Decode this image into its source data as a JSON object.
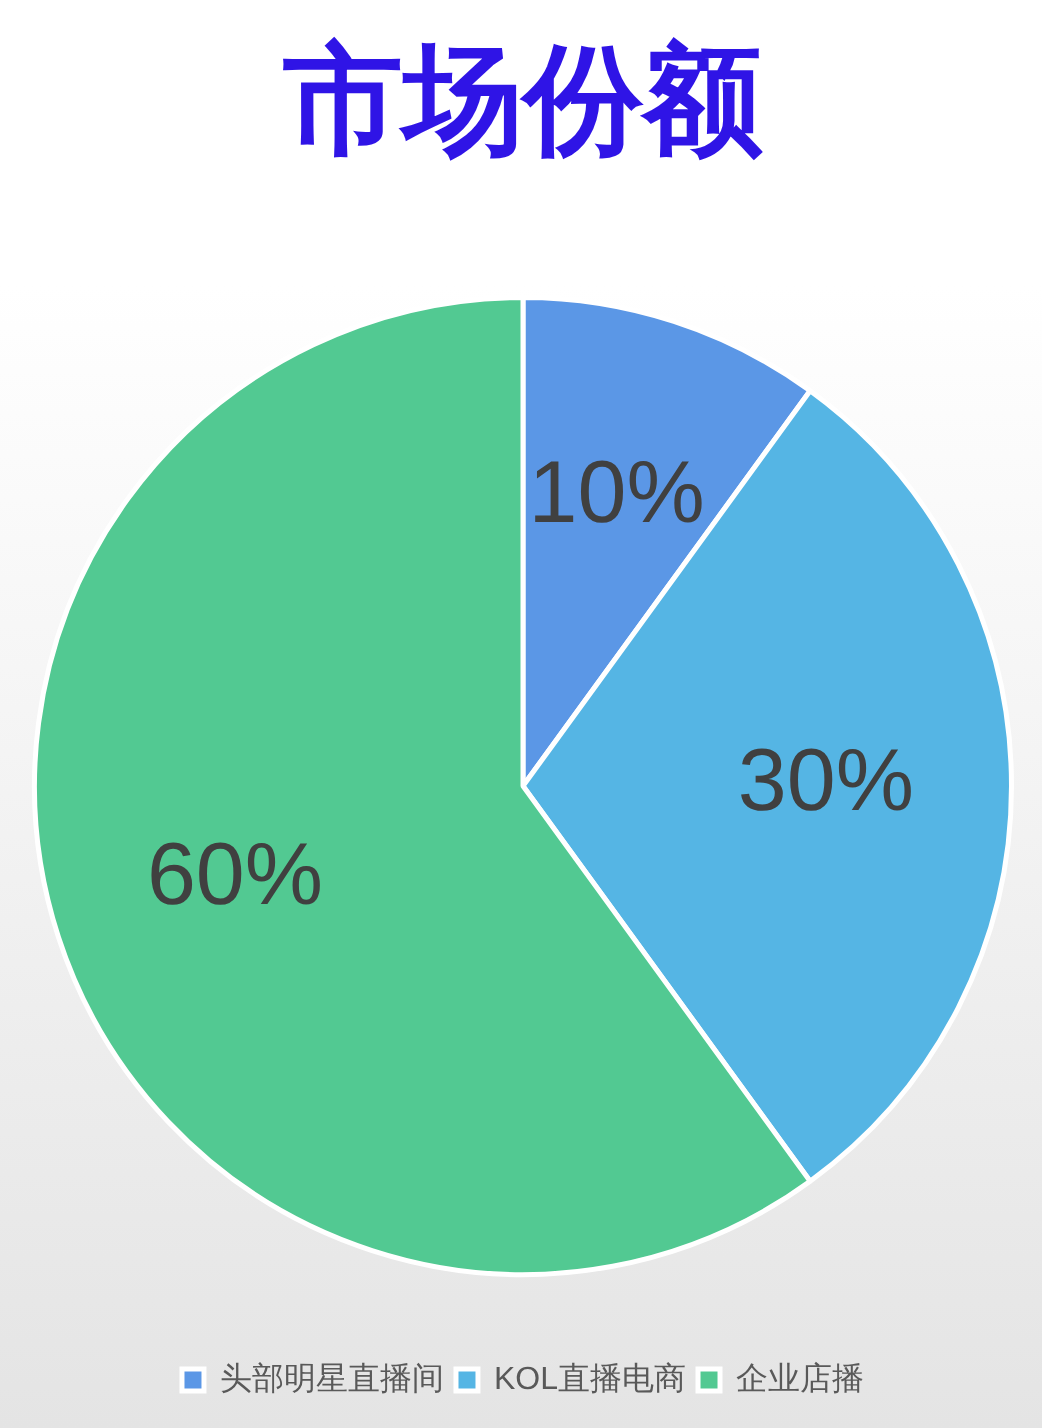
{
  "chart_data": {
    "type": "pie",
    "title": "市场份额",
    "categories": [
      "头部明星直播间",
      "KOL直播电商",
      "企业店播"
    ],
    "values": [
      10,
      30,
      60
    ],
    "colors": [
      "#5b97e6",
      "#55b5e4",
      "#52c992"
    ],
    "value_labels": [
      "10%",
      "30%",
      "60%"
    ],
    "legend": "bottom"
  }
}
